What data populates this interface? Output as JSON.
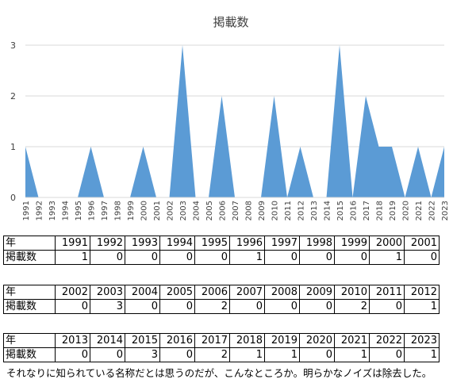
{
  "chart_data": {
    "type": "area",
    "title": "掲載数",
    "x": [
      "1991",
      "1992",
      "1993",
      "1994",
      "1995",
      "1996",
      "1997",
      "1998",
      "1999",
      "2000",
      "2001",
      "2002",
      "2003",
      "2004",
      "2005",
      "2006",
      "2007",
      "2008",
      "2009",
      "2010",
      "2011",
      "2012",
      "2013",
      "2014",
      "2015",
      "2016",
      "2017",
      "2018",
      "2019",
      "2020",
      "2021",
      "2022",
      "2023"
    ],
    "values": [
      1,
      0,
      0,
      0,
      0,
      1,
      0,
      0,
      0,
      1,
      0,
      0,
      3,
      0,
      0,
      2,
      0,
      0,
      0,
      2,
      0,
      1,
      0,
      0,
      3,
      0,
      2,
      1,
      1,
      0,
      1,
      0,
      1
    ],
    "ylim": [
      0,
      3
    ],
    "yticks": [
      "0",
      "1",
      "2",
      "3"
    ],
    "grid": true,
    "color": "#5b9bd5"
  },
  "tables": [
    {
      "row_label_year": "年",
      "row_label_count": "掲載数",
      "years": [
        "1991",
        "1992",
        "1993",
        "1994",
        "1995",
        "1996",
        "1997",
        "1998",
        "1999",
        "2000",
        "2001"
      ],
      "counts": [
        "1",
        "0",
        "0",
        "0",
        "0",
        "1",
        "0",
        "0",
        "0",
        "1",
        "0"
      ]
    },
    {
      "row_label_year": "年",
      "row_label_count": "掲載数",
      "years": [
        "2002",
        "2003",
        "2004",
        "2005",
        "2006",
        "2007",
        "2008",
        "2009",
        "2010",
        "2011",
        "2012"
      ],
      "counts": [
        "0",
        "3",
        "0",
        "0",
        "2",
        "0",
        "0",
        "0",
        "2",
        "0",
        "1"
      ]
    },
    {
      "row_label_year": "年",
      "row_label_count": "掲載数",
      "years": [
        "2013",
        "2014",
        "2015",
        "2016",
        "2017",
        "2018",
        "2019",
        "2020",
        "2021",
        "2022",
        "2023"
      ],
      "counts": [
        "0",
        "0",
        "3",
        "0",
        "2",
        "1",
        "1",
        "0",
        "1",
        "0",
        "1"
      ]
    }
  ],
  "footnote": "それなりに知られている名称だとは思うのだが、こんなところか。明らかなノイズは除去した。"
}
